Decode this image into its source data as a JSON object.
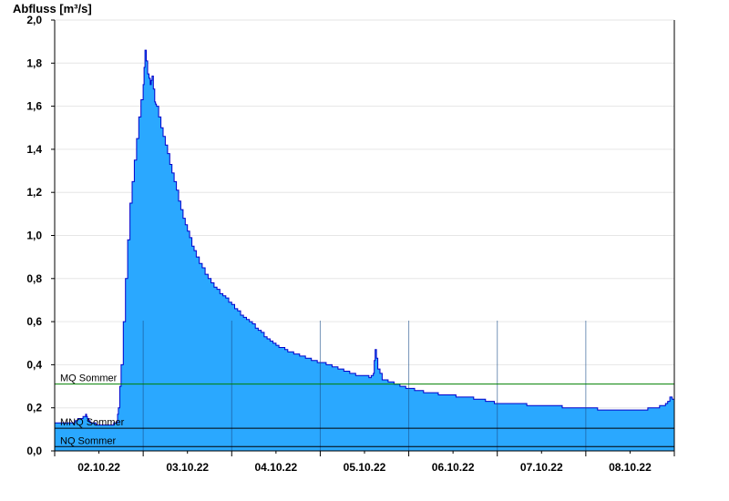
{
  "chart_data": {
    "type": "area",
    "title": "",
    "ylabel": "Abfluss [m³/s]",
    "xlabel": "",
    "ylim": [
      0,
      2.0
    ],
    "xlim": [
      0,
      7
    ],
    "yticks": [
      0,
      0.2,
      0.4,
      0.6,
      0.8,
      1.0,
      1.2,
      1.4,
      1.6,
      1.8,
      2.0
    ],
    "ytick_labels": [
      "0,0",
      "0,2",
      "0,4",
      "0,6",
      "0,8",
      "1,0",
      "1,2",
      "1,4",
      "1,6",
      "1,8",
      "2,0"
    ],
    "day_ticks": [
      0,
      1,
      2,
      3,
      4,
      5,
      6,
      7
    ],
    "day_labels": [
      "02.10.22",
      "03.10.22",
      "04.10.22",
      "05.10.22",
      "06.10.22",
      "07.10.22",
      "08.10.22"
    ],
    "grid": true,
    "fill_color": "#2aa8ff",
    "line_color": "#0000cc",
    "series": [
      {
        "x": [
          0,
          0.2,
          0.35,
          0.37,
          0.4,
          0.5,
          0.6,
          0.7,
          0.72,
          0.75,
          0.8,
          0.85,
          0.9,
          0.95,
          1.0,
          1.02,
          1.05,
          1.08,
          1.1,
          1.13,
          1.15,
          1.2,
          1.25,
          1.3,
          1.35,
          1.4,
          1.45,
          1.5,
          1.55,
          1.6,
          1.7,
          1.8,
          1.9,
          2.0,
          2.1,
          2.2,
          2.3,
          2.4,
          2.5,
          2.6,
          2.7,
          2.8,
          2.9,
          3.0,
          3.1,
          3.2,
          3.3,
          3.4,
          3.5,
          3.55,
          3.6,
          3.62,
          3.65,
          3.7,
          3.8,
          3.9,
          4.0,
          4.2,
          4.4,
          4.6,
          4.8,
          5.0,
          5.2,
          5.4,
          5.6,
          5.8,
          6.0,
          6.2,
          6.4,
          6.6,
          6.8,
          6.9,
          6.95,
          7.0
        ],
        "y": [
          0.13,
          0.13,
          0.17,
          0.15,
          0.13,
          0.12,
          0.12,
          0.13,
          0.2,
          0.4,
          0.8,
          1.15,
          1.35,
          1.55,
          1.7,
          1.86,
          1.75,
          1.7,
          1.74,
          1.62,
          1.6,
          1.5,
          1.42,
          1.33,
          1.25,
          1.16,
          1.08,
          1.02,
          0.95,
          0.9,
          0.82,
          0.76,
          0.72,
          0.68,
          0.63,
          0.6,
          0.56,
          0.52,
          0.49,
          0.47,
          0.45,
          0.44,
          0.42,
          0.41,
          0.4,
          0.38,
          0.37,
          0.35,
          0.35,
          0.34,
          0.36,
          0.47,
          0.38,
          0.33,
          0.32,
          0.3,
          0.29,
          0.27,
          0.26,
          0.25,
          0.24,
          0.22,
          0.22,
          0.21,
          0.21,
          0.2,
          0.2,
          0.19,
          0.19,
          0.19,
          0.2,
          0.22,
          0.25,
          0.23
        ]
      }
    ],
    "reference_lines": [
      {
        "label": "MQ Sommer",
        "value": 0.31,
        "color": "#008000"
      },
      {
        "label": "MNQ Sommer",
        "value": 0.105,
        "color": "#000000"
      },
      {
        "label": "NQ Sommer",
        "value": 0.02,
        "color": "#000000"
      }
    ]
  }
}
